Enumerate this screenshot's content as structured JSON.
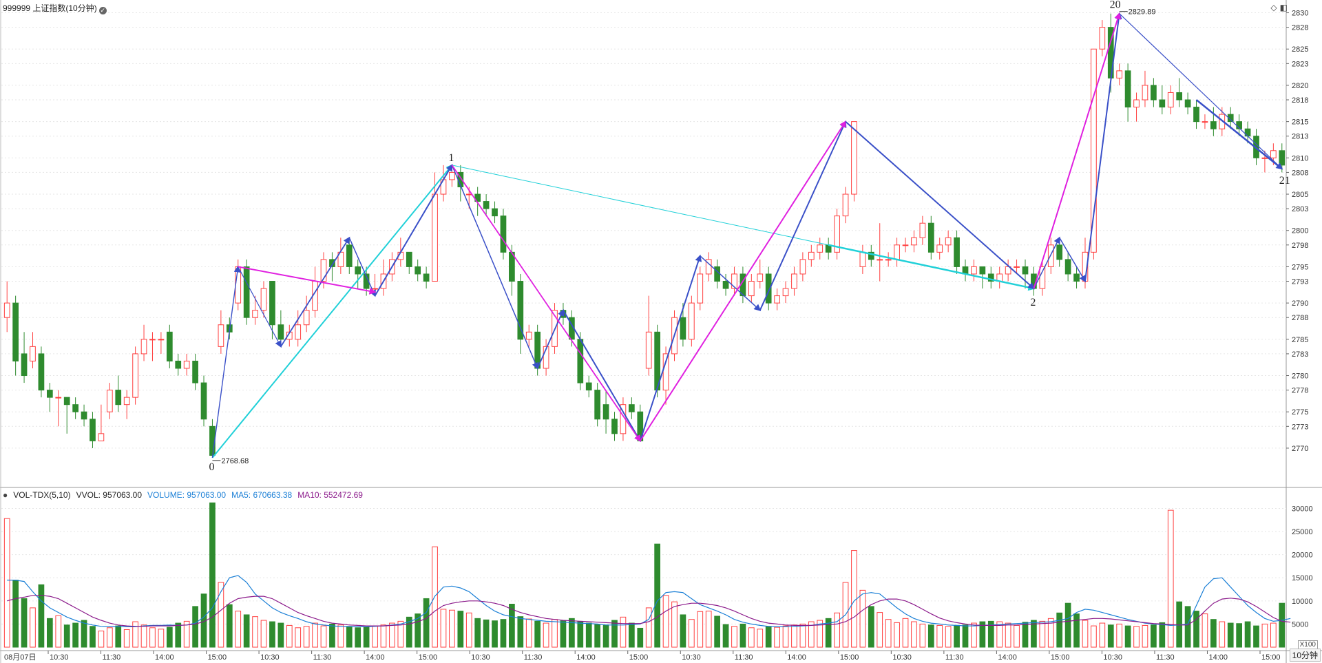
{
  "header": {
    "title": "999999 上证指数(10分钟)",
    "settings_icon": "gear-icon"
  },
  "volume_header": {
    "name": "VOL-TDX(5,10)",
    "vvol_label": "VVOL: 957063.00",
    "volume_label": "VOLUME: 957063.00",
    "ma5_label": "MA5: 670663.38",
    "ma10_label": "MA10: 552472.69",
    "x_unit": "X100"
  },
  "footer": {
    "period": "10分钟",
    "date_label": "08月07日"
  },
  "corner_icons": [
    "diamond-icon",
    "panel-icon"
  ],
  "colors": {
    "up": "#ff4040",
    "down": "#2e8b2e",
    "ma5": "#1a7fd6",
    "ma10": "#8b1a8b",
    "wave_blue": "#3a50c8",
    "wave_magenta": "#e020e0",
    "wave_cyan": "#20d0d8",
    "grid": "#e6e6e6",
    "axis_text": "#333333"
  },
  "chart_data": {
    "type": "candlestick",
    "y_axis": {
      "ticks": [
        2770,
        2773,
        2775,
        2778,
        2780,
        2783,
        2785,
        2788,
        2790,
        2793,
        2795,
        2798,
        2800,
        2803,
        2805,
        2808,
        2810,
        2813,
        2815,
        2818,
        2820,
        2823,
        2825,
        2828,
        2830
      ],
      "ylim": [
        2768,
        2831
      ]
    },
    "x_axis": {
      "time_labels": [
        "10:30",
        "11:30",
        "14:00",
        "15:00",
        "10:30",
        "11:30",
        "14:00",
        "15:00",
        "10:30",
        "11:30",
        "14:00",
        "15:00",
        "10:30",
        "11:30",
        "14:00",
        "15:00",
        "10:30",
        "11:30",
        "14:00",
        "15:00",
        "10:30",
        "11:30",
        "14:00",
        "15:00"
      ]
    },
    "candles": [
      [
        2788,
        2790,
        2793,
        2786
      ],
      [
        2790,
        2782,
        2791,
        2780
      ],
      [
        2783,
        2780,
        2786,
        2779
      ],
      [
        2782,
        2784,
        2786,
        2781
      ],
      [
        2783,
        2778,
        2784,
        2777
      ],
      [
        2778,
        2777,
        2779,
        2775
      ],
      [
        2777,
        2777,
        2778,
        2773
      ],
      [
        2777,
        2776,
        2777,
        2772
      ],
      [
        2776,
        2775,
        2777,
        2774
      ],
      [
        2775,
        2774,
        2776,
        2773
      ],
      [
        2774,
        2771,
        2775,
        2770
      ],
      [
        2771,
        2772,
        2776,
        2771
      ],
      [
        2775,
        2778,
        2779,
        2774
      ],
      [
        2778,
        2776,
        2780,
        2775
      ],
      [
        2776,
        2777,
        2778,
        2774
      ],
      [
        2777,
        2783,
        2784,
        2776
      ],
      [
        2783,
        2785,
        2787,
        2782
      ],
      [
        2785,
        2785,
        2786,
        2782
      ],
      [
        2785,
        2785,
        2786,
        2783
      ],
      [
        2786,
        2782,
        2787,
        2781
      ],
      [
        2782,
        2781,
        2783,
        2780
      ],
      [
        2781,
        2782,
        2783,
        2780
      ],
      [
        2782,
        2779,
        2783,
        2778
      ],
      [
        2779,
        2774,
        2780,
        2773
      ],
      [
        2773,
        2769,
        2774,
        2768.68
      ],
      [
        2784,
        2787,
        2789,
        2783
      ],
      [
        2787,
        2786,
        2788,
        2785
      ],
      [
        2790,
        2795,
        2796,
        2789
      ],
      [
        2795,
        2788,
        2796,
        2787
      ],
      [
        2788,
        2789,
        2791,
        2787
      ],
      [
        2789,
        2792,
        2793,
        2788
      ],
      [
        2793,
        2787,
        2793,
        2785
      ],
      [
        2787,
        2785,
        2789,
        2784
      ],
      [
        2785,
        2786,
        2787,
        2784
      ],
      [
        2785,
        2787,
        2789,
        2784
      ],
      [
        2787,
        2789,
        2791,
        2786
      ],
      [
        2789,
        2793,
        2795,
        2788
      ],
      [
        2793,
        2796,
        2797,
        2792
      ],
      [
        2796,
        2795,
        2797,
        2793
      ],
      [
        2795,
        2797,
        2799,
        2794
      ],
      [
        2798,
        2795,
        2799,
        2794
      ],
      [
        2795,
        2794,
        2796,
        2792
      ],
      [
        2794,
        2792,
        2795,
        2791
      ],
      [
        2792,
        2792,
        2794,
        2791
      ],
      [
        2792,
        2794,
        2796,
        2791
      ],
      [
        2794,
        2796,
        2797,
        2793
      ],
      [
        2796,
        2797,
        2799,
        2795
      ],
      [
        2797,
        2795,
        2797,
        2794
      ],
      [
        2795,
        2794,
        2796,
        2793
      ],
      [
        2794,
        2793,
        2795,
        2792
      ],
      [
        2793,
        2805,
        2808,
        2802
      ],
      [
        2805,
        2807,
        2809,
        2804
      ],
      [
        2807,
        2808,
        2809,
        2806
      ],
      [
        2808,
        2806,
        2809,
        2804
      ],
      [
        2805,
        2805,
        2806,
        2803
      ],
      [
        2805,
        2804,
        2806,
        2802
      ],
      [
        2804,
        2803,
        2805,
        2802
      ],
      [
        2803,
        2802,
        2804,
        2801
      ],
      [
        2802,
        2797,
        2803,
        2796
      ],
      [
        2797,
        2793,
        2798,
        2791
      ],
      [
        2793,
        2785,
        2794,
        2783
      ],
      [
        2785,
        2786,
        2787,
        2784
      ],
      [
        2786,
        2781,
        2787,
        2780
      ],
      [
        2781,
        2784,
        2785,
        2780
      ],
      [
        2784,
        2789,
        2790,
        2783
      ],
      [
        2789,
        2788,
        2790,
        2787
      ],
      [
        2788,
        2785,
        2789,
        2784
      ],
      [
        2785,
        2779,
        2786,
        2778
      ],
      [
        2779,
        2778,
        2780,
        2777
      ],
      [
        2778,
        2774,
        2779,
        2773
      ],
      [
        2776,
        2774,
        2778,
        2772
      ],
      [
        2774,
        2772,
        2775,
        2771
      ],
      [
        2772,
        2776,
        2777,
        2771
      ],
      [
        2776,
        2775,
        2777,
        2774
      ],
      [
        2775,
        2771,
        2776,
        2771
      ],
      [
        2781,
        2786,
        2791,
        2780
      ],
      [
        2786,
        2778,
        2787,
        2777
      ],
      [
        2778,
        2783,
        2784,
        2776
      ],
      [
        2783,
        2788,
        2789,
        2782
      ],
      [
        2788,
        2785,
        2790,
        2784
      ],
      [
        2785,
        2790,
        2791,
        2784
      ],
      [
        2790,
        2794,
        2795,
        2789
      ],
      [
        2794,
        2796,
        2797,
        2793
      ],
      [
        2795,
        2793,
        2796,
        2792
      ],
      [
        2793,
        2792,
        2794,
        2791
      ],
      [
        2792,
        2794,
        2795,
        2791
      ],
      [
        2794,
        2791,
        2795,
        2790
      ],
      [
        2791,
        2793,
        2794,
        2790
      ],
      [
        2793,
        2794,
        2796,
        2792
      ],
      [
        2794,
        2790,
        2795,
        2789
      ],
      [
        2790,
        2791,
        2792,
        2789
      ],
      [
        2791,
        2792,
        2793,
        2790
      ],
      [
        2792,
        2794,
        2795,
        2791
      ],
      [
        2794,
        2796,
        2797,
        2793
      ],
      [
        2796,
        2797,
        2798,
        2795
      ],
      [
        2797,
        2798,
        2799,
        2796
      ],
      [
        2798,
        2797,
        2799,
        2796
      ],
      [
        2797,
        2802,
        2803,
        2796
      ],
      [
        2802,
        2805,
        2806,
        2801
      ],
      [
        2805,
        2815,
        2815,
        2804
      ],
      [
        2795,
        2797,
        2798,
        2794
      ],
      [
        2797,
        2796,
        2798,
        2795
      ],
      [
        2796,
        2796,
        2801,
        2793
      ],
      [
        2796,
        2796,
        2797,
        2795
      ],
      [
        2796,
        2798,
        2799,
        2795
      ],
      [
        2798,
        2798,
        2799,
        2797
      ],
      [
        2798,
        2799,
        2800,
        2797
      ],
      [
        2799,
        2801,
        2802,
        2798
      ],
      [
        2801,
        2797,
        2802,
        2796
      ],
      [
        2797,
        2798,
        2799,
        2796
      ],
      [
        2798,
        2799,
        2800,
        2797
      ],
      [
        2799,
        2795,
        2800,
        2794
      ],
      [
        2795,
        2794,
        2796,
        2793
      ],
      [
        2794,
        2795,
        2796,
        2793
      ],
      [
        2795,
        2794,
        2795,
        2792
      ],
      [
        2794,
        2793,
        2795,
        2792
      ],
      [
        2793,
        2794,
        2795,
        2792
      ],
      [
        2794,
        2795,
        2796,
        2793
      ],
      [
        2795,
        2795,
        2796,
        2794
      ],
      [
        2795,
        2794,
        2796,
        2792
      ],
      [
        2794,
        2792,
        2795,
        2791
      ],
      [
        2792,
        2795,
        2796,
        2791
      ],
      [
        2795,
        2798,
        2799,
        2794
      ],
      [
        2798,
        2796,
        2799,
        2795
      ],
      [
        2796,
        2794,
        2797,
        2793
      ],
      [
        2794,
        2793,
        2795,
        2792
      ],
      [
        2793,
        2797,
        2799,
        2792
      ],
      [
        2797,
        2825,
        2825,
        2796
      ],
      [
        2825,
        2828,
        2829,
        2824
      ],
      [
        2828,
        2821,
        2829.89,
        2819
      ],
      [
        2821,
        2822,
        2823,
        2820
      ],
      [
        2822,
        2817,
        2823,
        2815
      ],
      [
        2817,
        2818,
        2819,
        2815
      ],
      [
        2818,
        2820,
        2822,
        2817
      ],
      [
        2820,
        2818,
        2821,
        2817
      ],
      [
        2818,
        2817,
        2820,
        2816
      ],
      [
        2817,
        2819,
        2820,
        2816
      ],
      [
        2819,
        2818,
        2821,
        2817
      ],
      [
        2818,
        2817,
        2819,
        2816
      ],
      [
        2817,
        2815,
        2818,
        2814
      ],
      [
        2815,
        2815,
        2816,
        2814
      ],
      [
        2815,
        2814,
        2817,
        2813
      ],
      [
        2814,
        2816,
        2817,
        2813
      ],
      [
        2816,
        2815,
        2817,
        2814
      ],
      [
        2815,
        2814,
        2816,
        2813
      ],
      [
        2814,
        2813,
        2815,
        2812
      ],
      [
        2813,
        2810,
        2814,
        2809
      ],
      [
        2810,
        2810,
        2811,
        2808
      ],
      [
        2810,
        2811,
        2812,
        2809
      ],
      [
        2811,
        2809,
        2812,
        2808
      ]
    ],
    "volume": [
      278,
      145,
      105,
      85,
      135,
      62,
      68,
      48,
      52,
      58,
      45,
      35,
      42,
      46,
      38,
      55,
      48,
      42,
      39,
      43,
      52,
      56,
      88,
      115,
      312,
      140,
      92,
      78,
      70,
      66,
      58,
      55,
      52,
      47,
      42,
      45,
      52,
      46,
      50,
      48,
      45,
      42,
      44,
      46,
      48,
      52,
      56,
      65,
      72,
      105,
      217,
      82,
      80,
      78,
      74,
      62,
      59,
      57,
      60,
      93,
      66,
      61,
      56,
      52,
      60,
      57,
      62,
      55,
      52,
      49,
      48,
      58,
      65,
      52,
      41,
      85,
      223,
      112,
      98,
      70,
      60,
      77,
      78,
      67,
      49,
      45,
      50,
      42,
      39,
      45,
      43,
      46,
      48,
      50,
      55,
      58,
      62,
      74,
      140,
      209,
      123,
      88,
      75,
      60,
      53,
      62,
      55,
      50,
      48,
      47,
      45,
      47,
      48,
      52,
      55,
      56,
      55,
      52,
      47,
      54,
      58,
      56,
      62,
      74,
      95,
      72,
      58,
      46,
      52,
      48,
      50,
      46,
      45,
      47,
      48,
      53,
      296,
      98,
      88,
      78,
      72,
      60,
      55,
      52,
      51,
      55,
      46,
      50,
      52,
      95
    ],
    "ma5": [
      145,
      145,
      142,
      120,
      100,
      85,
      75,
      65,
      58,
      52,
      48,
      45,
      44,
      44,
      44,
      44,
      46,
      47,
      47,
      48,
      47,
      48,
      52,
      65,
      85,
      120,
      150,
      155,
      140,
      115,
      100,
      85,
      75,
      68,
      62,
      55,
      50,
      48,
      46,
      45,
      44,
      44,
      44,
      45,
      46,
      48,
      50,
      55,
      62,
      75,
      110,
      130,
      132,
      128,
      120,
      105,
      90,
      78,
      70,
      66,
      62,
      60,
      58,
      56,
      55,
      54,
      53,
      52,
      51,
      50,
      48,
      48,
      48,
      49,
      50,
      60,
      100,
      118,
      120,
      118,
      105,
      92,
      85,
      78,
      70,
      60,
      54,
      50,
      47,
      45,
      44,
      44,
      45,
      46,
      47,
      50,
      52,
      55,
      70,
      100,
      115,
      118,
      115,
      100,
      85,
      72,
      62,
      56,
      52,
      50,
      48,
      47,
      46,
      46,
      47,
      48,
      49,
      50,
      51,
      52,
      53,
      54,
      55,
      58,
      62,
      75,
      82,
      80,
      75,
      70,
      65,
      60,
      56,
      52,
      50,
      49,
      47,
      48,
      50,
      90,
      130,
      148,
      150,
      130,
      110,
      90,
      75,
      62,
      56,
      58,
      62
    ],
    "ma10": [
      100,
      105,
      108,
      112,
      112,
      110,
      105,
      95,
      85,
      75,
      65,
      58,
      52,
      48,
      46,
      45,
      45,
      46,
      46,
      46,
      47,
      48,
      50,
      55,
      65,
      80,
      95,
      105,
      108,
      110,
      110,
      105,
      95,
      85,
      75,
      68,
      62,
      56,
      52,
      50,
      48,
      47,
      46,
      46,
      46,
      47,
      48,
      50,
      55,
      62,
      78,
      90,
      95,
      98,
      100,
      100,
      98,
      95,
      90,
      82,
      75,
      70,
      66,
      62,
      60,
      58,
      57,
      56,
      55,
      54,
      53,
      52,
      51,
      51,
      51,
      55,
      65,
      78,
      88,
      92,
      95,
      95,
      93,
      90,
      85,
      78,
      70,
      62,
      56,
      52,
      50,
      48,
      47,
      47,
      47,
      48,
      49,
      50,
      55,
      65,
      80,
      92,
      100,
      104,
      104,
      100,
      92,
      82,
      72,
      63,
      57,
      53,
      50,
      48,
      47,
      47,
      47,
      48,
      48,
      49,
      50,
      51,
      52,
      54,
      56,
      58,
      60,
      62,
      62,
      61,
      59,
      57,
      55,
      53,
      51,
      50,
      49,
      48,
      48,
      60,
      78,
      95,
      104,
      106,
      104,
      98,
      88,
      76,
      64,
      56,
      54
    ],
    "volume_axis": {
      "ticks": [
        5000,
        10000,
        15000,
        20000,
        25000,
        30000
      ],
      "unit_multiplier": "X100"
    },
    "annotations": {
      "wave_labels": [
        "0",
        "1",
        "2",
        "20",
        "21"
      ],
      "price_labels": [
        "2768.68",
        "2829.89"
      ]
    }
  }
}
